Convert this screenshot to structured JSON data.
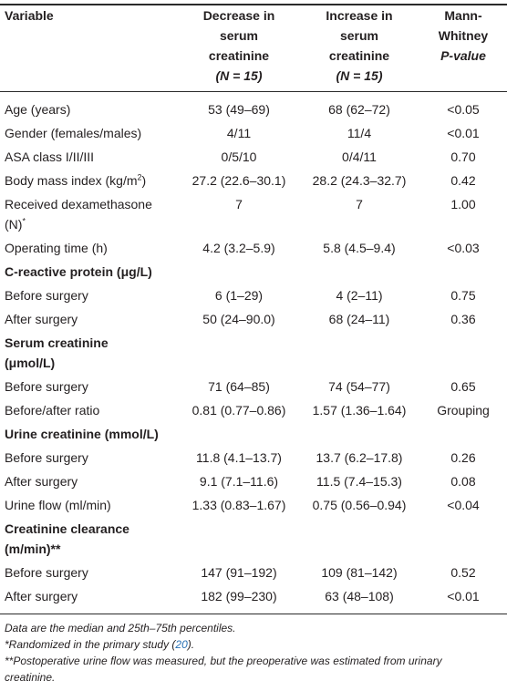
{
  "header": {
    "variable": "Variable",
    "decrease": [
      "Decrease in",
      "serum",
      "creatinine"
    ],
    "decrease_n": "(N = 15)",
    "increase": [
      "Increase in",
      "serum",
      "creatinine"
    ],
    "increase_n": "(N = 15)",
    "pvalue": [
      "Mann-",
      "Whitney",
      "P-value"
    ]
  },
  "rows": [
    {
      "label": "Age (years)",
      "dec": "53 (49–69)",
      "inc": "68 (62–72)",
      "p": "<0.05"
    },
    {
      "label": "Gender (females/males)",
      "dec": "4/11",
      "inc": "11/4",
      "p": "<0.01"
    },
    {
      "label": "ASA class I/II/III",
      "dec": "0/5/10",
      "inc": "0/4/11",
      "p": "0.70"
    },
    {
      "label": "Body mass index (kg/m",
      "sup": "2",
      "label_end": ")",
      "dec": "27.2 (22.6–30.1)",
      "inc": "28.2 (24.3–32.7)",
      "p": "0.42"
    },
    {
      "label": "Received dexamethasone",
      "label2": "(N)",
      "sup": "*",
      "dec": "7",
      "inc": "7",
      "p": "1.00"
    },
    {
      "label": "Operating time (h)",
      "dec": "4.2 (3.2–5.9)",
      "inc": "5.8 (4.5–9.4)",
      "p": "<0.03"
    },
    {
      "label": "C-reactive protein (μg/L)"
    },
    {
      "label": "Before surgery",
      "dec": "6 (1–29)",
      "inc": "4 (2–11)",
      "p": "0.75"
    },
    {
      "label": "After surgery",
      "dec": "50 (24–90.0)",
      "inc": "68 (24–11)",
      "p": "0.36"
    },
    {
      "label": "Serum creatinine",
      "label2": "(μmol/L)"
    },
    {
      "label": "Before surgery",
      "dec": "71 (64–85)",
      "inc": "74 (54–77)",
      "p": "0.65"
    },
    {
      "label": "Before/after ratio",
      "dec": "0.81 (0.77–0.86)",
      "inc": "1.57 (1.36–1.64)",
      "p": "Grouping"
    },
    {
      "label": "Urine creatinine (mmol/L)"
    },
    {
      "label": "Before surgery",
      "dec": "11.8 (4.1–13.7)",
      "inc": "13.7 (6.2–17.8)",
      "p": "0.26"
    },
    {
      "label": "After surgery",
      "dec": "9.1 (7.1–11.6)",
      "inc": "11.5 (7.4–15.3)",
      "p": "0.08"
    },
    {
      "label": "Urine flow (ml/min)",
      "dec": "1.33 (0.83–1.67)",
      "inc": "0.75 (0.56–0.94)",
      "p": "<0.04"
    },
    {
      "label": "Creatinine clearance",
      "label2": "(m/min)**"
    },
    {
      "label": "Before surgery",
      "dec": "147 (91–192)",
      "inc": "109 (81–142)",
      "p": "0.52"
    },
    {
      "label": "After surgery",
      "dec": "182 (99–230)",
      "inc": "63 (48–108)",
      "p": "<0.01"
    }
  ],
  "notes": {
    "n1": "Data are the median and 25th–75th percentiles.",
    "n2_pre": "*Randomized in the primary study (",
    "n2_ref": "20",
    "n2_post": ").",
    "n3": "**Postoperative urine flow was measured, but the preoperative was estimated from urinary",
    "n3b": "creatinine."
  },
  "colors": {
    "text": "#231f20",
    "link": "#2a72b5",
    "rule": "#2a2a2a"
  }
}
